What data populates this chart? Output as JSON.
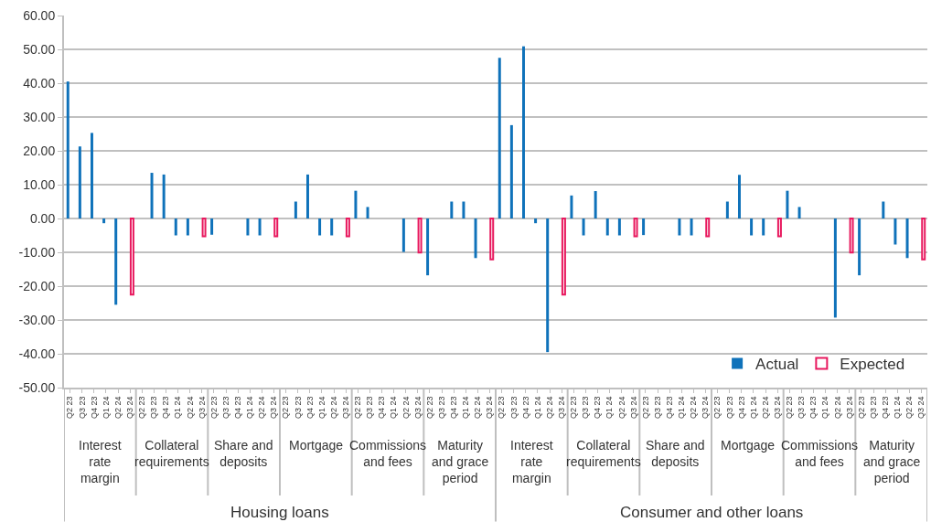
{
  "chart_data": {
    "type": "bar",
    "categories": [
      "Q2 23",
      "Q3 23",
      "Q4 23",
      "Q1 24",
      "Q2 24",
      "Q3 24",
      "Q2 23",
      "Q3 23",
      "Q4 23",
      "Q1 24",
      "Q2 24",
      "Q3 24",
      "Q2 23",
      "Q3 23",
      "Q4 23",
      "Q1 24",
      "Q2 24",
      "Q3 24",
      "Q2 23",
      "Q3 23",
      "Q4 23",
      "Q1 24",
      "Q2 24",
      "Q3 24",
      "Q2 23",
      "Q3 23",
      "Q4 23",
      "Q1 24",
      "Q2 24",
      "Q3 24",
      "Q2 23",
      "Q3 23",
      "Q4 23",
      "Q1 24",
      "Q2 24",
      "Q3 24",
      "Q2 23",
      "Q3 23",
      "Q4 23",
      "Q1 24",
      "Q2 24",
      "Q3 24",
      "Q2 23",
      "Q3 23",
      "Q4 23",
      "Q1 24",
      "Q2 24",
      "Q3 24",
      "Q2 23",
      "Q3 23",
      "Q4 23",
      "Q1 24",
      "Q2 24",
      "Q3 24",
      "Q2 23",
      "Q3 23",
      "Q4 23",
      "Q1 24",
      "Q2 24",
      "Q3 24",
      "Q2 23",
      "Q3 23",
      "Q4 23",
      "Q1 24",
      "Q2 24",
      "Q3 24",
      "Q2 23",
      "Q3 23",
      "Q4 23",
      "Q1 24",
      "Q2 24",
      "Q3 24"
    ],
    "series": [
      {
        "name": "Actual",
        "color": "#0f72ba",
        "values": [
          40.5,
          21.3,
          25.3,
          -1.4,
          -25.5,
          null,
          0,
          13.5,
          13.0,
          -5.0,
          -5.0,
          null,
          -4.8,
          0,
          0,
          -5.0,
          -5.0,
          null,
          0,
          5.0,
          13.0,
          -5.0,
          -5.0,
          null,
          8.2,
          3.4,
          0,
          0,
          -9.9,
          null,
          -16.8,
          0,
          5.0,
          5.0,
          -11.7,
          null,
          47.5,
          27.6,
          50.9,
          -1.4,
          -39.5,
          null,
          6.8,
          -5.0,
          8.1,
          -5.0,
          -5.0,
          null,
          -4.9,
          0,
          0,
          -5.0,
          -5.0,
          null,
          0,
          5.0,
          12.9,
          -5.0,
          -5.0,
          null,
          8.2,
          3.4,
          0,
          0,
          -29.3,
          null,
          -16.8,
          0,
          5.0,
          -7.7,
          -11.7,
          null
        ]
      },
      {
        "name": "Expected",
        "color": "#e8185e",
        "values": [
          null,
          null,
          null,
          null,
          null,
          -22.5,
          null,
          null,
          null,
          null,
          null,
          -5.3,
          null,
          null,
          null,
          null,
          null,
          -5.3,
          null,
          null,
          null,
          null,
          null,
          -5.3,
          null,
          null,
          null,
          null,
          null,
          -10.1,
          null,
          null,
          null,
          null,
          null,
          -12.1,
          null,
          null,
          null,
          null,
          null,
          -22.5,
          null,
          null,
          null,
          null,
          null,
          -5.3,
          null,
          null,
          null,
          null,
          null,
          -5.3,
          null,
          null,
          null,
          null,
          null,
          -5.3,
          null,
          null,
          null,
          null,
          null,
          -10.1,
          null,
          null,
          null,
          null,
          null,
          -12.1
        ]
      }
    ],
    "ylim": [
      -50,
      60
    ],
    "yticks": [
      {
        "value": -50,
        "label": "-50.00"
      },
      {
        "value": -40,
        "label": "-40.00"
      },
      {
        "value": -30,
        "label": "-30.00"
      },
      {
        "value": -20,
        "label": "-20.00"
      },
      {
        "value": -10,
        "label": "-10.00"
      },
      {
        "value": 0,
        "label": "0.00"
      },
      {
        "value": 10,
        "label": "10.00"
      },
      {
        "value": 20,
        "label": "20.00"
      },
      {
        "value": 30,
        "label": "30.00"
      },
      {
        "value": 40,
        "label": "40.00"
      },
      {
        "value": 50,
        "label": "50.00"
      },
      {
        "value": 60,
        "label": "60.00"
      }
    ],
    "annotations": [
      "Interest rate margin",
      "Collateral requirements",
      "Share and deposits",
      "Mortgage",
      "Commissions and fees",
      "Maturity and grace period",
      "Interest rate margin",
      "Collateral requirements",
      "Share and deposits",
      "Mortgage",
      "Commissions and fees",
      "Maturity and grace period",
      "Housing loans",
      "Consumer and other loans"
    ],
    "grid": "y",
    "legend": "bottom right"
  }
}
